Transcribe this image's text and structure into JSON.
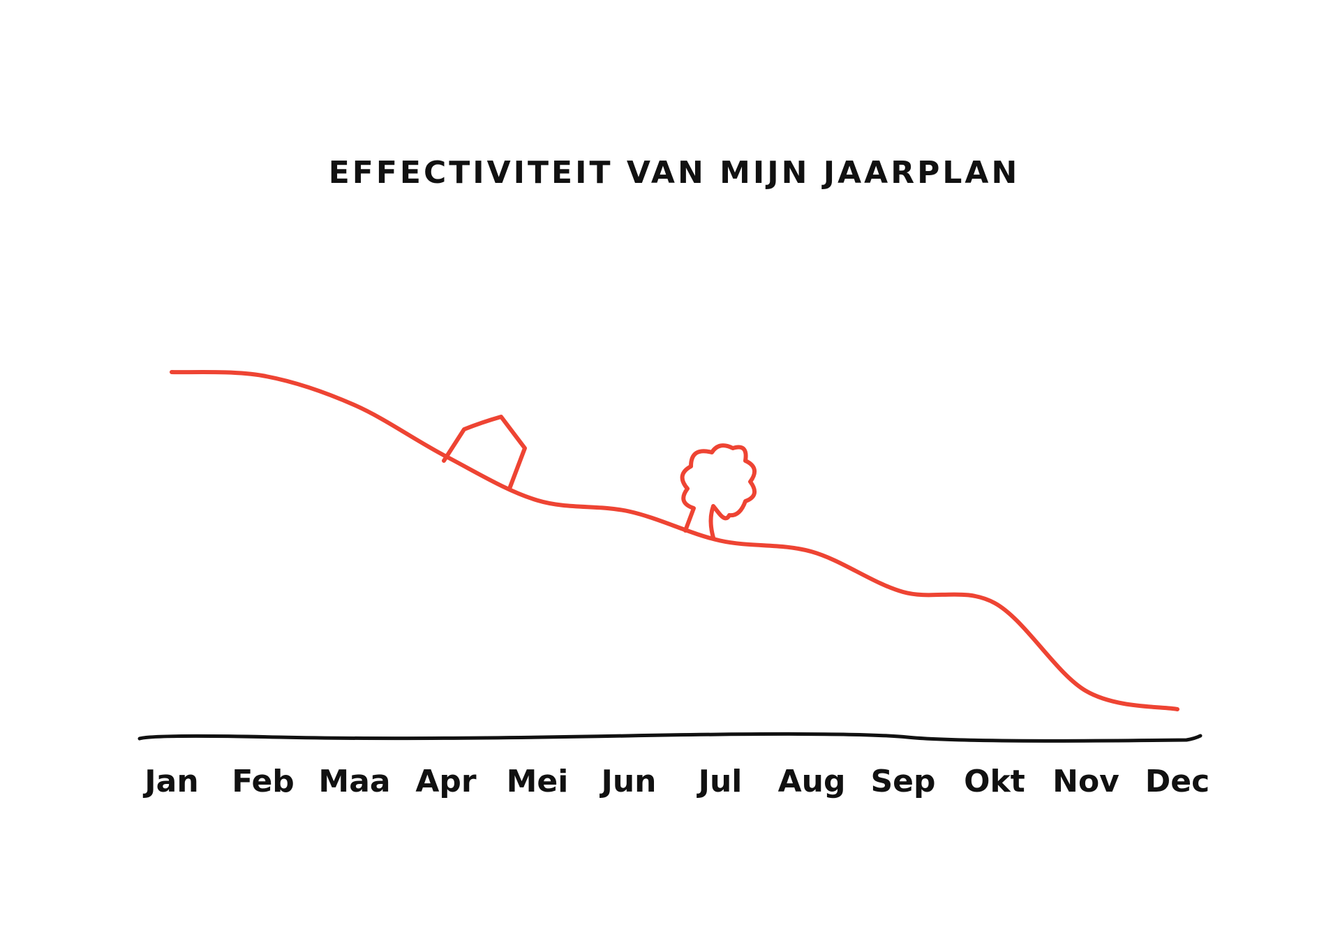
{
  "chart_data": {
    "type": "line",
    "title": "EFFECTIVITEIT VAN MIJN JAARPLAN",
    "categories": [
      "Jan",
      "Feb",
      "Maa",
      "Apr",
      "Mei",
      "Jun",
      "Jul",
      "Aug",
      "Sep",
      "Okt",
      "Nov",
      "Dec"
    ],
    "values": [
      100,
      99,
      91,
      77,
      65,
      62,
      54,
      51,
      40,
      37,
      13,
      8
    ],
    "color": "#ee4433"
  }
}
